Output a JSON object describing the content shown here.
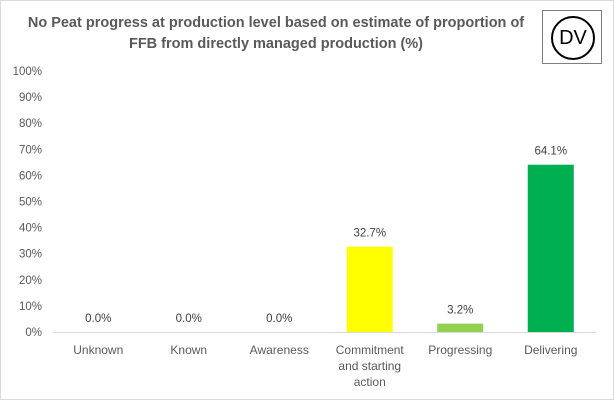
{
  "chart_data": {
    "type": "bar",
    "title": "No Peat progress at production level based on estimate of proportion of FFB from directly managed production (%)",
    "badge": "DV",
    "categories": [
      [
        "Unknown"
      ],
      [
        "Known"
      ],
      [
        "Awareness"
      ],
      [
        "Commitment",
        "and starting",
        "action"
      ],
      [
        "Progressing"
      ],
      [
        "Delivering"
      ]
    ],
    "values": [
      0.0,
      0.0,
      0.0,
      32.7,
      3.2,
      64.1
    ],
    "data_labels": [
      "0.0%",
      "0.0%",
      "0.0%",
      "32.7%",
      "3.2%",
      "64.1%"
    ],
    "colors": [
      "#a6a6a6",
      "#a6a6a6",
      "#a6a6a6",
      "#ffff00",
      "#92d050",
      "#00b050"
    ],
    "yticks": [
      "0%",
      "10%",
      "20%",
      "30%",
      "40%",
      "50%",
      "60%",
      "70%",
      "80%",
      "90%",
      "100%"
    ],
    "ylim": [
      0,
      100
    ],
    "xlabel": "",
    "ylabel": "",
    "grid": false
  }
}
